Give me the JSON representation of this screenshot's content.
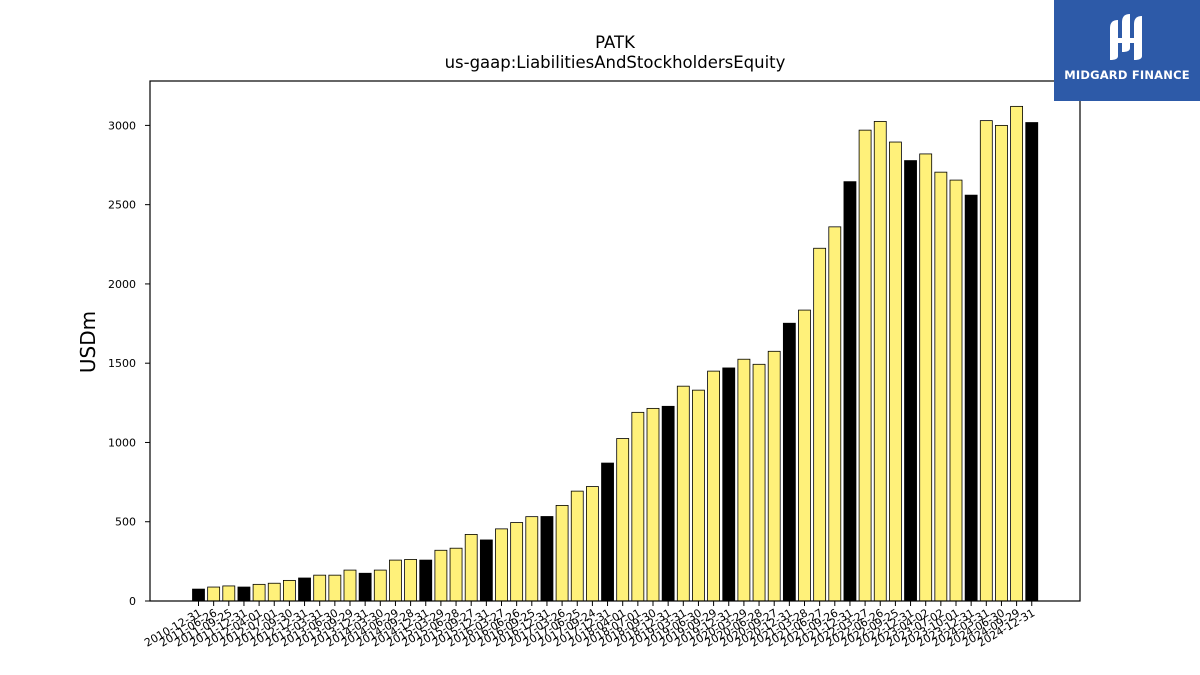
{
  "logo": {
    "text": "MIDGARD FINANCE",
    "icon": "mh-monogram-icon",
    "background": "#2d5aa8"
  },
  "chart_data": {
    "type": "bar",
    "title": "PATK",
    "subtitle": "us-gaap:LiabilitiesAndStockholdersEquity",
    "xlabel": "",
    "ylabel": "USDm",
    "ylim": [
      0,
      3280
    ],
    "yticks": [
      0,
      500,
      1000,
      1500,
      2000,
      2500,
      3000
    ],
    "grid": false,
    "colors": {
      "annual": "#000000",
      "quarterly": "#fff17a",
      "edge": "#000000"
    },
    "categories": [
      "2010-12-31",
      "2011-06-26",
      "2011-09-25",
      "2011-12-31",
      "2012-04-01",
      "2012-07-01",
      "2012-09-30",
      "2012-12-31",
      "2013-03-31",
      "2013-06-30",
      "2013-09-29",
      "2013-12-31",
      "2014-03-30",
      "2014-06-29",
      "2014-09-28",
      "2014-12-31",
      "2015-03-29",
      "2015-06-28",
      "2015-09-27",
      "2015-12-31",
      "2016-03-27",
      "2016-06-26",
      "2016-09-25",
      "2016-12-31",
      "2017-03-26",
      "2017-06-25",
      "2017-09-24",
      "2017-12-31",
      "2018-04-01",
      "2018-07-01",
      "2018-09-30",
      "2018-12-31",
      "2019-03-31",
      "2019-06-30",
      "2019-09-29",
      "2019-12-31",
      "2020-03-29",
      "2020-06-28",
      "2020-09-27",
      "2020-12-31",
      "2021-03-28",
      "2021-06-27",
      "2021-09-26",
      "2021-12-31",
      "2022-03-27",
      "2022-06-26",
      "2022-09-25",
      "2022-12-31",
      "2023-04-02",
      "2023-07-02",
      "2023-10-01",
      "2023-12-31",
      "2024-03-31",
      "2024-06-30",
      "2024-09-29",
      "2024-12-31"
    ],
    "values": [
      75,
      88,
      95,
      88,
      105,
      112,
      130,
      145,
      163,
      163,
      195,
      175,
      195,
      258,
      262,
      258,
      320,
      333,
      420,
      385,
      455,
      495,
      532,
      533,
      603,
      693,
      722,
      870,
      1025,
      1190,
      1215,
      1228,
      1355,
      1330,
      1450,
      1470,
      1525,
      1493,
      1575,
      1752,
      1835,
      2225,
      2360,
      2645,
      2970,
      3025,
      2895,
      2778,
      2820,
      2705,
      2655,
      2560,
      3030,
      3000,
      3120,
      3018
    ],
    "annual": [
      true,
      false,
      false,
      true,
      false,
      false,
      false,
      true,
      false,
      false,
      false,
      true,
      false,
      false,
      false,
      true,
      false,
      false,
      false,
      true,
      false,
      false,
      false,
      true,
      false,
      false,
      false,
      true,
      false,
      false,
      false,
      true,
      false,
      false,
      false,
      true,
      false,
      false,
      false,
      true,
      false,
      false,
      false,
      true,
      false,
      false,
      false,
      true,
      false,
      false,
      false,
      true,
      false,
      false,
      false,
      true
    ]
  }
}
